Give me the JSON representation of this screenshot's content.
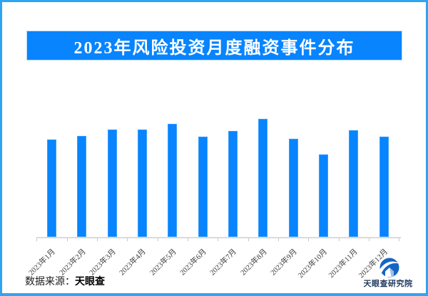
{
  "header": {
    "title": "2023年风险投资月度融资事件分布"
  },
  "chart_data": {
    "type": "bar",
    "title": "2023年风险投资月度融资事件分布",
    "categories": [
      "2023年1月",
      "2023年2月",
      "2023年3月",
      "2023年4月",
      "2023年5月",
      "2023年6月",
      "2023年7月",
      "2023年8月",
      "2023年9月",
      "2023年10月",
      "2023年11月",
      "2023年12月"
    ],
    "values": [
      137,
      142,
      151,
      151,
      159,
      141,
      149,
      166,
      138,
      116,
      150,
      141
    ],
    "value_note": "chart shows no numeric y-axis or data labels; values are relative bar heights read from pixels",
    "xlabel": "",
    "ylabel": "",
    "ylim": [
      0,
      190
    ],
    "bar_color": "#0784FE",
    "grid": false,
    "legend": false,
    "x_tick_rotation": 45
  },
  "footer": {
    "source_label": "数据来源：",
    "source_value": "天眼查",
    "brand": "天眼查研究院",
    "logo_icon": "tianyancha-logo"
  },
  "colors": {
    "accent_blue": "#0784FE",
    "page_border_blue": "#2FA4F1",
    "banner_edge_blue": "#B7DCFB",
    "axis_gray": "#DADADA",
    "tick_label_gray": "#3C3C3C",
    "logo_blue": "#1566C4",
    "brand_navy": "#21395E"
  }
}
